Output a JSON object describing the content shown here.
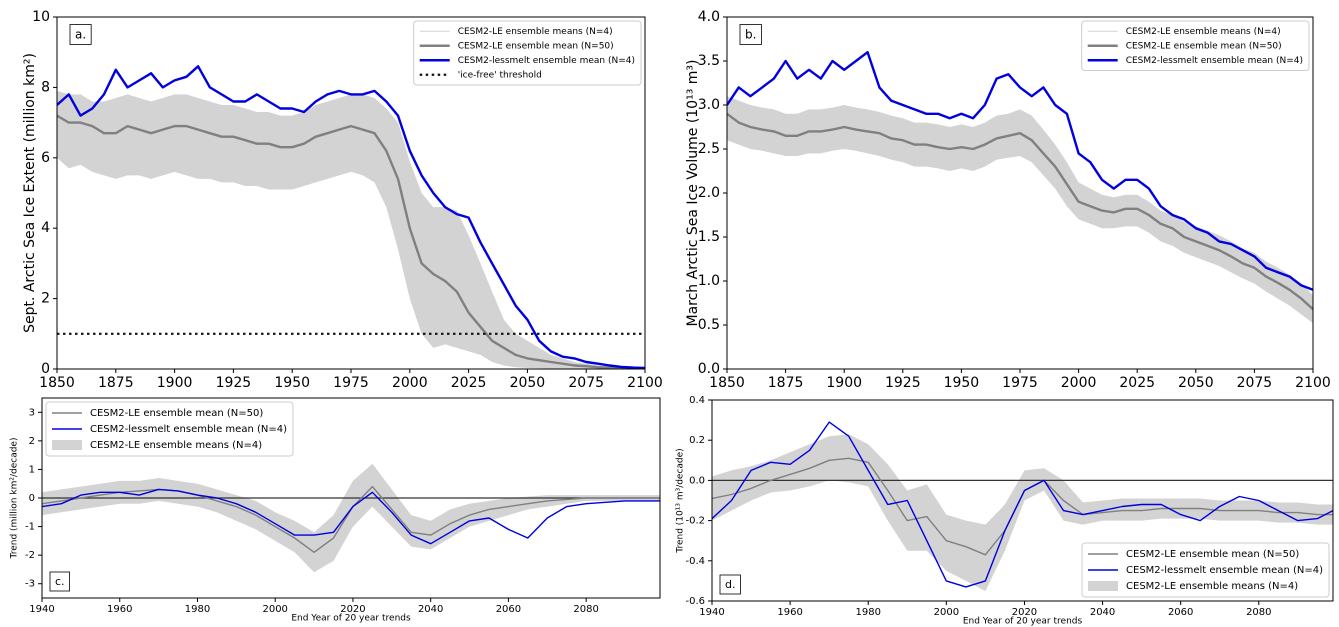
{
  "chart_data": [
    {
      "type": "line",
      "panel_label": "a.",
      "y_label": "Sept. Arctic Sea Ice Extent (million km²)",
      "x": [
        1850,
        1855,
        1860,
        1865,
        1870,
        1875,
        1880,
        1885,
        1890,
        1895,
        1900,
        1905,
        1910,
        1915,
        1920,
        1925,
        1930,
        1935,
        1940,
        1945,
        1950,
        1955,
        1960,
        1965,
        1970,
        1975,
        1980,
        1985,
        1990,
        1995,
        2000,
        2005,
        2010,
        2015,
        2020,
        2025,
        2030,
        2035,
        2040,
        2045,
        2050,
        2055,
        2060,
        2065,
        2070,
        2075,
        2080,
        2085,
        2090,
        2095,
        2100
      ],
      "xlim": [
        1850,
        2100
      ],
      "xticks": [
        1850,
        1875,
        1900,
        1925,
        1950,
        1975,
        2000,
        2025,
        2050,
        2075,
        2100
      ],
      "ylim": [
        0,
        10
      ],
      "yticks": [
        0,
        2,
        4,
        6,
        8,
        10
      ],
      "legend": "upper right",
      "series": [
        {
          "name": "CESM2-LE ensemble means (N=4)",
          "color": "#d3d3d3",
          "style": "band",
          "legend_marker": "line",
          "low": [
            6.0,
            5.7,
            5.8,
            5.6,
            5.5,
            5.4,
            5.5,
            5.5,
            5.4,
            5.5,
            5.6,
            5.5,
            5.4,
            5.4,
            5.3,
            5.3,
            5.2,
            5.2,
            5.1,
            5.1,
            5.1,
            5.2,
            5.3,
            5.4,
            5.5,
            5.6,
            5.5,
            5.3,
            4.6,
            3.4,
            2.0,
            1.0,
            0.6,
            0.7,
            0.6,
            0.5,
            0.4,
            0.2,
            0.1,
            0.05,
            0.03,
            0.02,
            0.01,
            0,
            0,
            0,
            0,
            0,
            0,
            0,
            0
          ],
          "high": [
            7.9,
            7.8,
            7.8,
            7.6,
            7.6,
            7.7,
            7.8,
            7.7,
            7.6,
            7.7,
            7.8,
            7.8,
            7.7,
            7.6,
            7.5,
            7.5,
            7.4,
            7.3,
            7.3,
            7.2,
            7.2,
            7.3,
            7.5,
            7.6,
            7.7,
            7.8,
            7.8,
            7.7,
            7.4,
            7.0,
            5.9,
            5.0,
            4.6,
            4.6,
            4.5,
            3.8,
            3.0,
            2.2,
            1.4,
            1.0,
            0.8,
            0.6,
            0.4,
            0.3,
            0.2,
            0.15,
            0.1,
            0.08,
            0.06,
            0.05,
            0.04
          ]
        },
        {
          "name": "CESM2-LE ensemble mean (N=50)",
          "color": "#808080",
          "style": "line",
          "values": [
            7.2,
            7.0,
            7.0,
            6.9,
            6.7,
            6.7,
            6.9,
            6.8,
            6.7,
            6.8,
            6.9,
            6.9,
            6.8,
            6.7,
            6.6,
            6.6,
            6.5,
            6.4,
            6.4,
            6.3,
            6.3,
            6.4,
            6.6,
            6.7,
            6.8,
            6.9,
            6.8,
            6.7,
            6.2,
            5.4,
            4.0,
            3.0,
            2.7,
            2.5,
            2.2,
            1.6,
            1.2,
            0.8,
            0.6,
            0.4,
            0.3,
            0.25,
            0.2,
            0.15,
            0.1,
            0.08,
            0.05,
            0.04,
            0.03,
            0.02,
            0.02
          ]
        },
        {
          "name": "CESM2-lessmelt ensemble mean (N=4)",
          "color": "#0000e0",
          "style": "line",
          "values": [
            7.5,
            7.8,
            7.2,
            7.4,
            7.8,
            8.5,
            8.0,
            8.2,
            8.4,
            8.0,
            8.2,
            8.3,
            8.6,
            8.0,
            7.8,
            7.6,
            7.6,
            7.8,
            7.6,
            7.4,
            7.4,
            7.3,
            7.6,
            7.8,
            7.9,
            7.8,
            7.8,
            7.9,
            7.6,
            7.2,
            6.2,
            5.5,
            5.0,
            4.6,
            4.4,
            4.3,
            3.6,
            3.0,
            2.4,
            1.8,
            1.4,
            0.8,
            0.5,
            0.35,
            0.3,
            0.2,
            0.15,
            0.1,
            0.06,
            0.04,
            0.03
          ]
        },
        {
          "name": "'ice-free' threshold",
          "color": "#111111",
          "style": "dotted",
          "y": 1
        }
      ]
    },
    {
      "type": "line",
      "panel_label": "b.",
      "y_label": "March Arctic Sea Ice Volume (10¹³ m³)",
      "x": [
        1850,
        1855,
        1860,
        1865,
        1870,
        1875,
        1880,
        1885,
        1890,
        1895,
        1900,
        1905,
        1910,
        1915,
        1920,
        1925,
        1930,
        1935,
        1940,
        1945,
        1950,
        1955,
        1960,
        1965,
        1970,
        1975,
        1980,
        1985,
        1990,
        1995,
        2000,
        2005,
        2010,
        2015,
        2020,
        2025,
        2030,
        2035,
        2040,
        2045,
        2050,
        2055,
        2060,
        2065,
        2070,
        2075,
        2080,
        2085,
        2090,
        2095,
        2100
      ],
      "xlim": [
        1850,
        2100
      ],
      "xticks": [
        1850,
        1875,
        1900,
        1925,
        1950,
        1975,
        2000,
        2025,
        2050,
        2075,
        2100
      ],
      "ylim": [
        0,
        4
      ],
      "yticks": [
        {
          "value": 0,
          "label": "0.0"
        },
        0.5,
        {
          "value": 1,
          "label": "1.0"
        },
        1.5,
        {
          "value": 2,
          "label": "2.0"
        },
        2.5,
        {
          "value": 3,
          "label": "3.0"
        },
        3.5,
        {
          "value": 4,
          "label": "4.0"
        }
      ],
      "legend": "upper right",
      "series": [
        {
          "name": "CESM2-LE ensemble means (N=4)",
          "color": "#d3d3d3",
          "style": "band",
          "legend_marker": "line",
          "low": [
            2.6,
            2.55,
            2.5,
            2.48,
            2.45,
            2.42,
            2.42,
            2.45,
            2.45,
            2.48,
            2.5,
            2.48,
            2.45,
            2.42,
            2.38,
            2.35,
            2.3,
            2.3,
            2.28,
            2.25,
            2.28,
            2.25,
            2.3,
            2.38,
            2.4,
            2.42,
            2.35,
            2.2,
            2.05,
            1.85,
            1.7,
            1.65,
            1.6,
            1.6,
            1.62,
            1.62,
            1.55,
            1.45,
            1.4,
            1.32,
            1.27,
            1.22,
            1.17,
            1.1,
            1.03,
            0.97,
            0.88,
            0.8,
            0.72,
            0.62,
            0.52
          ],
          "high": [
            3.1,
            3.05,
            3.0,
            2.97,
            2.95,
            2.9,
            2.9,
            2.95,
            2.95,
            2.97,
            3.0,
            2.97,
            2.95,
            2.92,
            2.88,
            2.85,
            2.8,
            2.8,
            2.78,
            2.75,
            2.78,
            2.75,
            2.8,
            2.88,
            2.9,
            2.95,
            2.88,
            2.72,
            2.55,
            2.35,
            2.12,
            2.05,
            1.98,
            1.95,
            1.98,
            1.98,
            1.9,
            1.8,
            1.75,
            1.67,
            1.62,
            1.57,
            1.52,
            1.45,
            1.37,
            1.32,
            1.22,
            1.15,
            1.07,
            0.97,
            0.84
          ]
        },
        {
          "name": "CESM2-LE ensemble mean (N=50)",
          "color": "#808080",
          "style": "line",
          "values": [
            2.9,
            2.8,
            2.75,
            2.72,
            2.7,
            2.65,
            2.65,
            2.7,
            2.7,
            2.72,
            2.75,
            2.72,
            2.7,
            2.68,
            2.62,
            2.6,
            2.55,
            2.55,
            2.52,
            2.5,
            2.52,
            2.5,
            2.55,
            2.62,
            2.65,
            2.68,
            2.6,
            2.45,
            2.3,
            2.1,
            1.9,
            1.85,
            1.8,
            1.78,
            1.82,
            1.82,
            1.75,
            1.65,
            1.6,
            1.5,
            1.45,
            1.4,
            1.35,
            1.28,
            1.2,
            1.15,
            1.05,
            0.98,
            0.9,
            0.8,
            0.68
          ]
        },
        {
          "name": "CESM2-lessmelt ensemble mean (N=4)",
          "color": "#0000e0",
          "style": "line",
          "values": [
            3.0,
            3.2,
            3.1,
            3.2,
            3.3,
            3.5,
            3.3,
            3.4,
            3.3,
            3.5,
            3.4,
            3.5,
            3.6,
            3.2,
            3.05,
            3.0,
            2.95,
            2.9,
            2.9,
            2.85,
            2.9,
            2.85,
            3.0,
            3.3,
            3.35,
            3.2,
            3.1,
            3.2,
            3.0,
            2.9,
            2.45,
            2.35,
            2.15,
            2.05,
            2.15,
            2.15,
            2.05,
            1.85,
            1.75,
            1.7,
            1.6,
            1.55,
            1.45,
            1.42,
            1.35,
            1.28,
            1.15,
            1.1,
            1.05,
            0.95,
            0.9
          ]
        }
      ]
    },
    {
      "type": "line",
      "panel_label": "c.",
      "y_label": "Trend (million km²/decade)",
      "x_label": "End Year of 20 year trends",
      "x": [
        1940,
        1945,
        1950,
        1955,
        1960,
        1965,
        1970,
        1975,
        1980,
        1985,
        1990,
        1995,
        2000,
        2005,
        2010,
        2015,
        2020,
        2025,
        2030,
        2035,
        2040,
        2045,
        2050,
        2055,
        2060,
        2065,
        2070,
        2075,
        2080,
        2085,
        2090,
        2095,
        2099
      ],
      "xlim": [
        1940,
        2099
      ],
      "xticks": [
        1940,
        1960,
        1980,
        2000,
        2020,
        2040,
        2060,
        2080
      ],
      "ylim": [
        -3.5,
        3.5
      ],
      "yticks": [
        -3,
        -2,
        -1,
        0,
        1,
        2,
        3
      ],
      "reference_line": 0,
      "legend": "upper left",
      "series": [
        {
          "name": "CESM2-LE ensemble mean (N=50)",
          "color": "#808080",
          "style": "line",
          "values": [
            -0.2,
            -0.1,
            0.0,
            0.1,
            0.2,
            0.25,
            0.3,
            0.25,
            0.1,
            -0.1,
            -0.3,
            -0.6,
            -1.0,
            -1.4,
            -1.9,
            -1.4,
            -0.3,
            0.4,
            -0.4,
            -1.2,
            -1.3,
            -0.9,
            -0.6,
            -0.4,
            -0.3,
            -0.2,
            -0.1,
            -0.05,
            0,
            0,
            0,
            0,
            0
          ]
        },
        {
          "name": "CESM2-lessmelt ensemble mean (N=4)",
          "color": "#0000e0",
          "style": "line",
          "values": [
            -0.3,
            -0.2,
            0.1,
            0.2,
            0.2,
            0.1,
            0.3,
            0.25,
            0.1,
            0.0,
            -0.2,
            -0.5,
            -0.9,
            -1.3,
            -1.3,
            -1.2,
            -0.3,
            0.2,
            -0.5,
            -1.3,
            -1.6,
            -1.2,
            -0.8,
            -0.7,
            -1.1,
            -1.4,
            -0.7,
            -0.3,
            -0.2,
            -0.15,
            -0.1,
            -0.1,
            -0.1
          ]
        },
        {
          "name": "CESM2-LE ensemble means (N=4)",
          "color": "#d3d3d3",
          "style": "band",
          "legend_marker": "patch",
          "low": [
            -0.6,
            -0.5,
            -0.4,
            -0.3,
            -0.2,
            -0.2,
            -0.1,
            -0.2,
            -0.3,
            -0.5,
            -0.8,
            -1.1,
            -1.5,
            -1.9,
            -2.6,
            -2.2,
            -1.0,
            -0.3,
            -1.0,
            -1.7,
            -1.8,
            -1.4,
            -1.0,
            -0.8,
            -0.6,
            -0.4,
            -0.3,
            -0.2,
            -0.1,
            -0.1,
            -0.1,
            -0.1,
            -0.1
          ],
          "high": [
            0.2,
            0.3,
            0.4,
            0.5,
            0.6,
            0.6,
            0.7,
            0.6,
            0.5,
            0.3,
            0.1,
            -0.1,
            -0.5,
            -0.8,
            -1.2,
            -0.6,
            0.6,
            1.2,
            0.3,
            -0.6,
            -0.8,
            -0.4,
            -0.2,
            -0.1,
            0.0,
            0.05,
            0.1,
            0.1,
            0.1,
            0.1,
            0.1,
            0.1,
            0.1
          ]
        }
      ]
    },
    {
      "type": "line",
      "panel_label": "d.",
      "y_label": "Trend (10¹³ m³/decade)",
      "x_label": "End Year of 20 year trends",
      "x": [
        1940,
        1945,
        1950,
        1955,
        1960,
        1965,
        1970,
        1975,
        1980,
        1985,
        1990,
        1995,
        2000,
        2005,
        2010,
        2015,
        2020,
        2025,
        2030,
        2035,
        2040,
        2045,
        2050,
        2055,
        2060,
        2065,
        2070,
        2075,
        2080,
        2085,
        2090,
        2095,
        2099
      ],
      "xlim": [
        1940,
        2099
      ],
      "xticks": [
        1940,
        1960,
        1980,
        2000,
        2020,
        2040,
        2060,
        2080
      ],
      "ylim": [
        -0.6,
        0.4
      ],
      "yticks": [
        -0.6,
        -0.4,
        -0.2,
        {
          "value": 0,
          "label": "0.0"
        },
        0.2,
        0.4
      ],
      "reference_line": 0,
      "legend": "lower right",
      "series": [
        {
          "name": "CESM2-LE ensemble mean (N=50)",
          "color": "#808080",
          "style": "line",
          "values": [
            -0.09,
            -0.07,
            -0.04,
            0.0,
            0.03,
            0.06,
            0.1,
            0.11,
            0.09,
            -0.05,
            -0.2,
            -0.18,
            -0.3,
            -0.33,
            -0.37,
            -0.25,
            -0.05,
            0.0,
            -0.1,
            -0.17,
            -0.16,
            -0.15,
            -0.15,
            -0.14,
            -0.14,
            -0.14,
            -0.15,
            -0.15,
            -0.15,
            -0.16,
            -0.16,
            -0.17,
            -0.17
          ]
        },
        {
          "name": "CESM2-lessmelt ensemble mean (N=4)",
          "color": "#0000e0",
          "style": "line",
          "values": [
            -0.19,
            -0.1,
            0.05,
            0.09,
            0.08,
            0.15,
            0.29,
            0.22,
            0.05,
            -0.12,
            -0.1,
            -0.3,
            -0.5,
            -0.53,
            -0.5,
            -0.25,
            -0.05,
            0.0,
            -0.15,
            -0.17,
            -0.15,
            -0.13,
            -0.12,
            -0.12,
            -0.17,
            -0.2,
            -0.13,
            -0.08,
            -0.1,
            -0.15,
            -0.2,
            -0.19,
            -0.15
          ]
        },
        {
          "name": "CESM2-LE ensemble means (N=4)",
          "color": "#d3d3d3",
          "style": "band",
          "legend_marker": "patch",
          "low": [
            -0.2,
            -0.15,
            -0.1,
            -0.06,
            -0.05,
            -0.03,
            0.0,
            -0.01,
            -0.03,
            -0.2,
            -0.35,
            -0.35,
            -0.45,
            -0.5,
            -0.55,
            -0.35,
            -0.1,
            -0.05,
            -0.2,
            -0.22,
            -0.2,
            -0.2,
            -0.2,
            -0.19,
            -0.19,
            -0.19,
            -0.2,
            -0.2,
            -0.2,
            -0.21,
            -0.21,
            -0.22,
            -0.22
          ],
          "high": [
            0.02,
            0.05,
            0.07,
            0.1,
            0.14,
            0.18,
            0.22,
            0.23,
            0.18,
            0.08,
            -0.05,
            -0.02,
            -0.17,
            -0.2,
            -0.22,
            -0.12,
            0.05,
            0.06,
            0.0,
            -0.11,
            -0.1,
            -0.09,
            -0.09,
            -0.09,
            -0.09,
            -0.09,
            -0.1,
            -0.1,
            -0.1,
            -0.11,
            -0.11,
            -0.12,
            -0.12
          ]
        }
      ]
    }
  ]
}
